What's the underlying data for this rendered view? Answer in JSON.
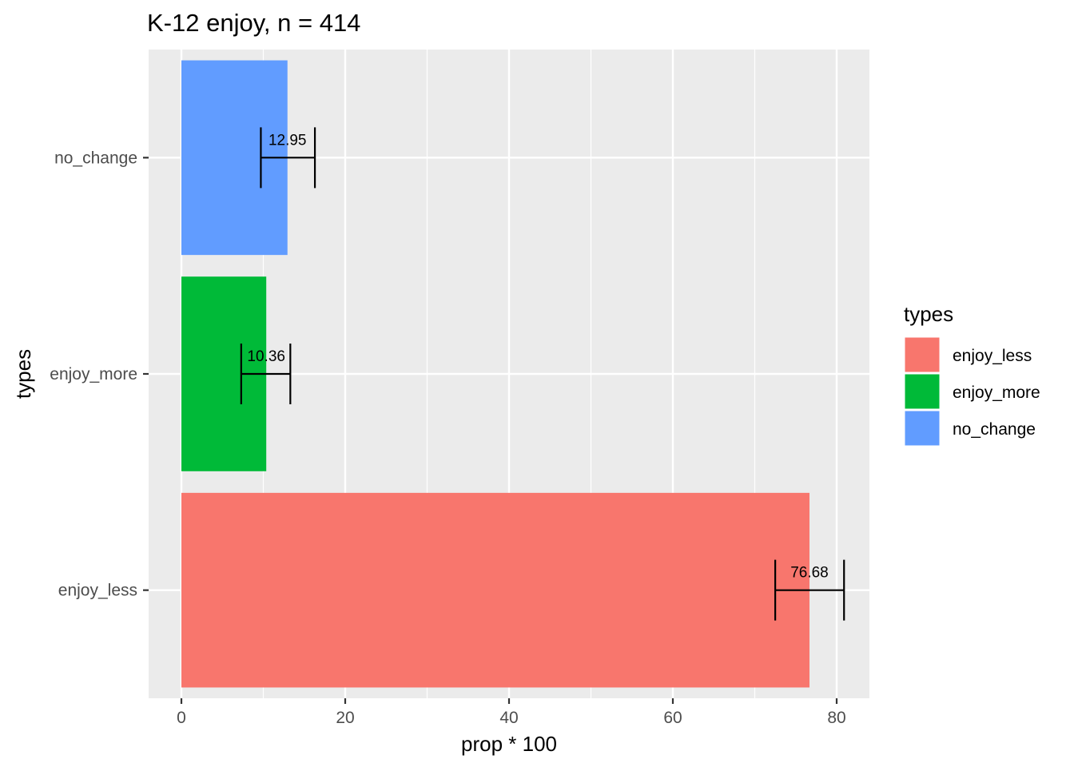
{
  "chart_data": {
    "type": "bar",
    "orientation": "horizontal",
    "title": "K-12 enjoy, n = 414",
    "xlabel": "prop * 100",
    "ylabel": "types",
    "categories": [
      "enjoy_less",
      "enjoy_more",
      "no_change"
    ],
    "values": [
      76.68,
      10.36,
      12.95
    ],
    "error_low": [
      72.5,
      7.3,
      9.7
    ],
    "error_high": [
      80.9,
      13.3,
      16.3
    ],
    "data_labels": [
      "76.68",
      "10.36",
      "12.95"
    ],
    "colors": [
      "#F8766D",
      "#00BA38",
      "#619CFF"
    ],
    "xlim": [
      -4,
      84
    ],
    "xticks": [
      0,
      20,
      40,
      60,
      80
    ],
    "xtick_labels": [
      "0",
      "20",
      "40",
      "60",
      "80"
    ],
    "grid": true,
    "panel_background": "#EBEBEB",
    "legend": {
      "title": "types",
      "position": "right",
      "entries": [
        "enjoy_less",
        "enjoy_more",
        "no_change"
      ]
    }
  }
}
